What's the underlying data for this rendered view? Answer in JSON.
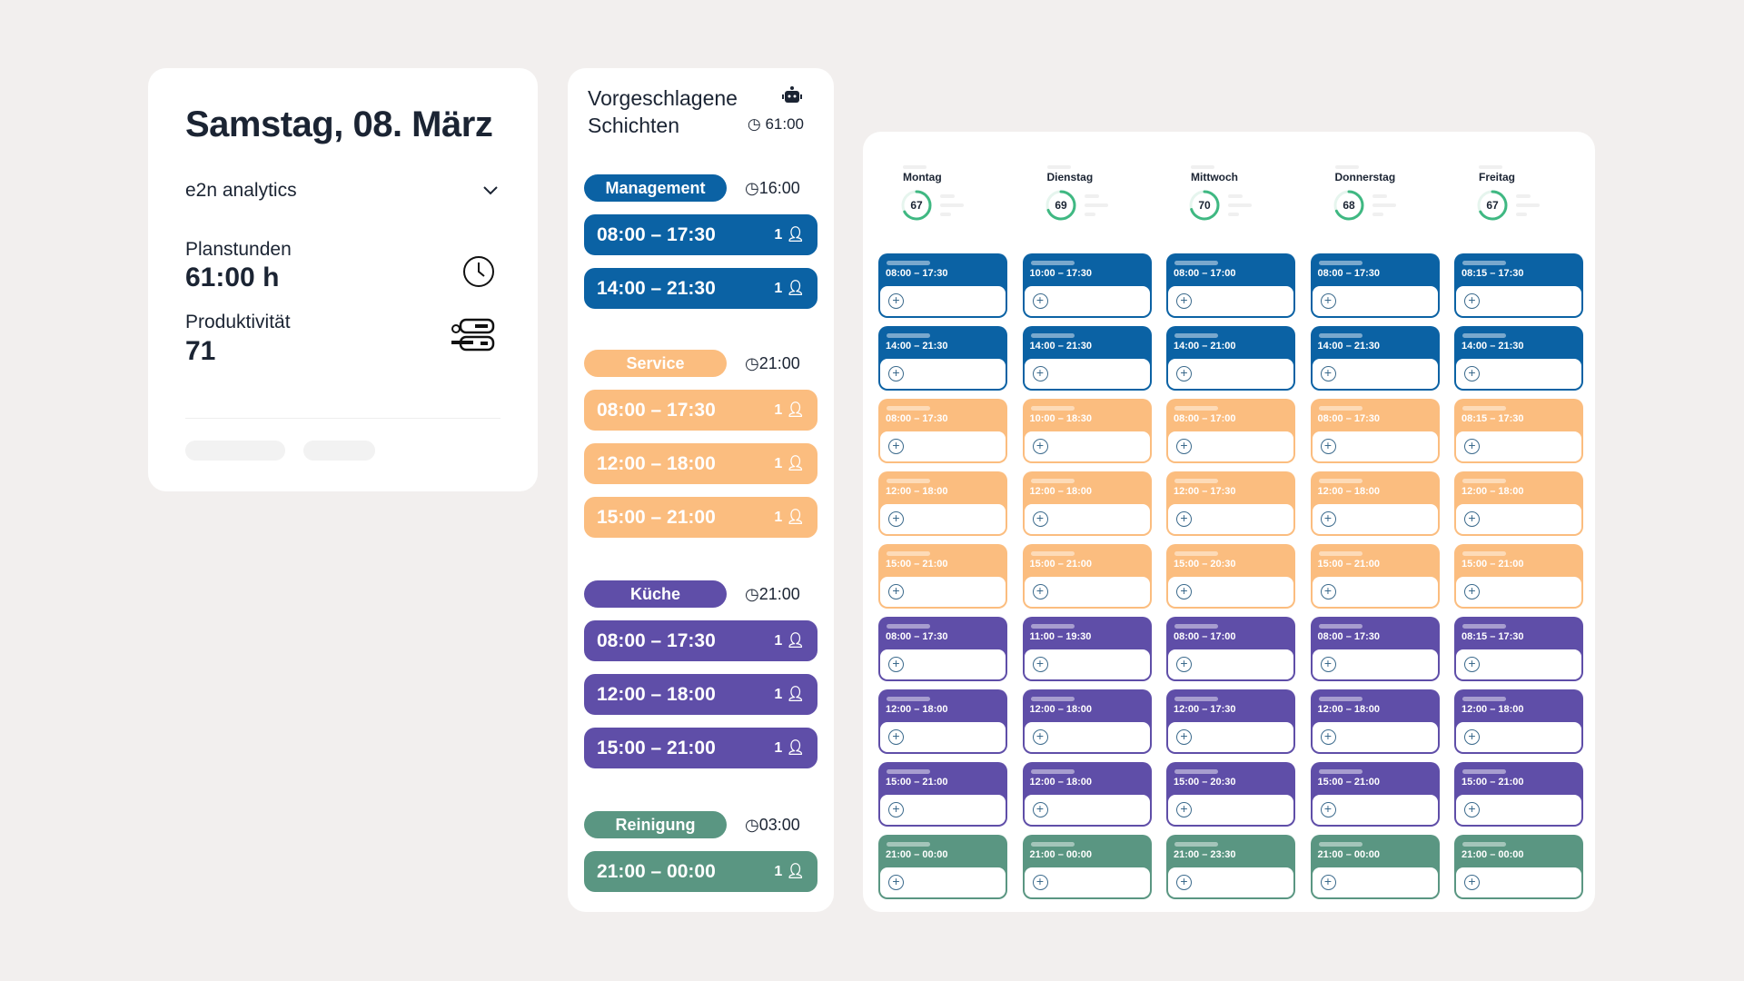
{
  "colors": {
    "management": "#0b62a4",
    "service": "#fbbd7f",
    "kueche": "#5f4ea8",
    "reinigung": "#5a9682",
    "ring": "#3fb882"
  },
  "summary": {
    "title": "Samstag, 08. März",
    "org": "e2n analytics",
    "planstunden_label": "Planstunden",
    "planstunden_value": "61:00 h",
    "produktivitaet_label": "Produktivität",
    "produktivitaet_value": "71"
  },
  "suggested": {
    "title_line1": "Vorgeschlagene",
    "title_line2": "Schichten",
    "total": "61:00",
    "groups": [
      {
        "key": "management",
        "name": "Management",
        "hours": "16:00",
        "shifts": [
          {
            "time": "08:00 – 17:30",
            "count": "1"
          },
          {
            "time": "14:00 – 21:30",
            "count": "1"
          }
        ]
      },
      {
        "key": "service",
        "name": "Service",
        "hours": "21:00",
        "shifts": [
          {
            "time": "08:00 – 17:30",
            "count": "1"
          },
          {
            "time": "12:00 – 18:00",
            "count": "1"
          },
          {
            "time": "15:00 – 21:00",
            "count": "1"
          }
        ]
      },
      {
        "key": "kueche",
        "name": "Küche",
        "hours": "21:00",
        "shifts": [
          {
            "time": "08:00 – 17:30",
            "count": "1"
          },
          {
            "time": "12:00 – 18:00",
            "count": "1"
          },
          {
            "time": "15:00 – 21:00",
            "count": "1"
          }
        ]
      },
      {
        "key": "reinigung",
        "name": "Reinigung",
        "hours": "03:00",
        "shifts": [
          {
            "time": "21:00 – 00:00",
            "count": "1"
          }
        ]
      }
    ]
  },
  "week": {
    "days": [
      {
        "name": "Montag",
        "score": 67
      },
      {
        "name": "Dienstag",
        "score": 69
      },
      {
        "name": "Mittwoch",
        "score": 70
      },
      {
        "name": "Donnerstag",
        "score": 68
      },
      {
        "name": "Freitag",
        "score": 67
      }
    ],
    "rows": [
      {
        "key": "management",
        "times": [
          "08:00 – 17:30",
          "10:00 – 17:30",
          "08:00 – 17:00",
          "08:00 – 17:30",
          "08:15 – 17:30"
        ]
      },
      {
        "key": "management",
        "times": [
          "14:00 – 21:30",
          "14:00 – 21:30",
          "14:00 – 21:00",
          "14:00 – 21:30",
          "14:00 – 21:30"
        ]
      },
      {
        "key": "service",
        "times": [
          "08:00 – 17:30",
          "10:00 – 18:30",
          "08:00 – 17:00",
          "08:00 – 17:30",
          "08:15 – 17:30"
        ]
      },
      {
        "key": "service",
        "times": [
          "12:00 – 18:00",
          "12:00 – 18:00",
          "12:00 – 17:30",
          "12:00 – 18:00",
          "12:00 – 18:00"
        ]
      },
      {
        "key": "service",
        "times": [
          "15:00 – 21:00",
          "15:00 – 21:00",
          "15:00 – 20:30",
          "15:00 – 21:00",
          "15:00 – 21:00"
        ]
      },
      {
        "key": "kueche",
        "times": [
          "08:00 – 17:30",
          "11:00 – 19:30",
          "08:00 – 17:00",
          "08:00 – 17:30",
          "08:15 – 17:30"
        ]
      },
      {
        "key": "kueche",
        "times": [
          "12:00 – 18:00",
          "12:00 – 18:00",
          "12:00 – 17:30",
          "12:00 – 18:00",
          "12:00 – 18:00"
        ]
      },
      {
        "key": "kueche",
        "times": [
          "15:00 – 21:00",
          "12:00 – 18:00",
          "15:00 – 20:30",
          "15:00 – 21:00",
          "15:00 – 21:00"
        ]
      },
      {
        "key": "reinigung",
        "times": [
          "21:00 – 00:00",
          "21:00 – 00:00",
          "21:00 – 23:30",
          "21:00 – 00:00",
          "21:00 – 00:00"
        ]
      }
    ]
  }
}
